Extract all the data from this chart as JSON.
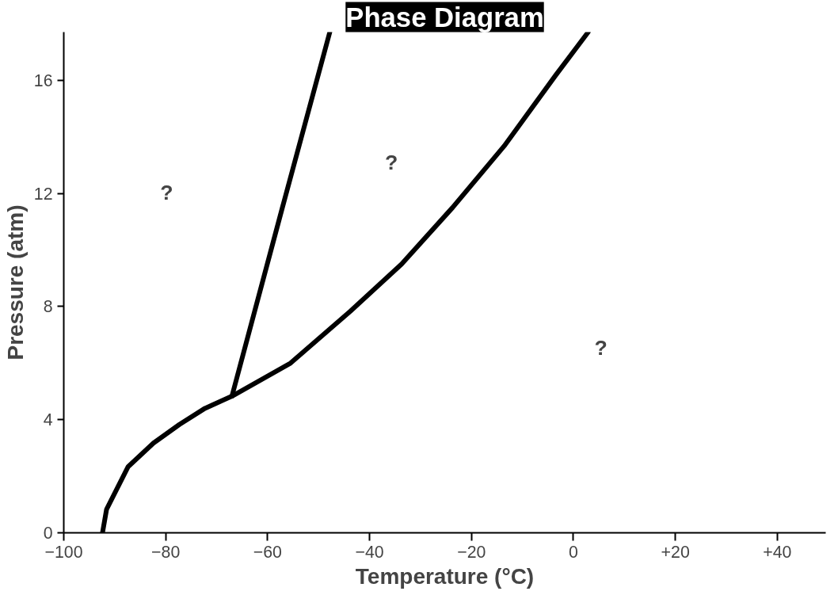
{
  "chart_data": {
    "type": "line",
    "title": "Phase Diagram",
    "xlabel": "Temperature (°C)",
    "ylabel": "Pressure (atm)",
    "xlim": [
      -100,
      49.5
    ],
    "ylim": [
      0,
      17.7
    ],
    "xticks": [
      {
        "value": -100,
        "label": "−100"
      },
      {
        "value": -80,
        "label": "−80"
      },
      {
        "value": -60,
        "label": "−60"
      },
      {
        "value": -40,
        "label": "−40"
      },
      {
        "value": -20,
        "label": "−20"
      },
      0,
      {
        "value": 20,
        "label": "+20"
      },
      {
        "value": 40,
        "label": "+40"
      }
    ],
    "yticks": [
      0,
      4,
      8,
      12,
      16
    ],
    "grid": false,
    "marker": "none",
    "line_style": "solid",
    "series": [
      {
        "color": "#000000",
        "x": [
          -92.4,
          -91.6,
          -87.4,
          -82.4,
          -77.3,
          -72.3,
          -67,
          -55.5,
          -43.8,
          -33.7,
          -23.7,
          -13.6,
          -3.5,
          2.9
        ],
        "values": [
          0,
          0.83,
          2.33,
          3.17,
          3.83,
          4.4,
          4.83,
          6.0,
          7.83,
          9.5,
          11.5,
          13.67,
          16.17,
          17.7
        ]
      },
      {
        "color": "#000000",
        "x": [
          -67,
          -57.1,
          -47.8
        ],
        "values": [
          4.83,
          11.5,
          17.7
        ]
      }
    ],
    "annotations": [
      "?",
      "?",
      "?"
    ]
  }
}
